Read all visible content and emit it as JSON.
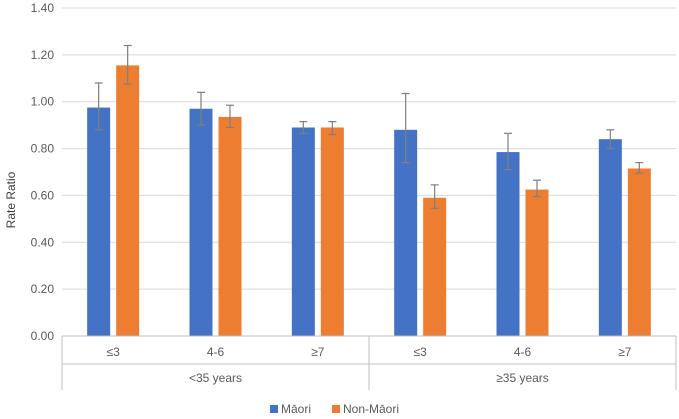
{
  "chart_data": {
    "type": "bar",
    "title": "",
    "ylabel": "Rate Ratio",
    "xlabel": "",
    "ylim": [
      0,
      1.4
    ],
    "yticks": [
      "0.00",
      "0.20",
      "0.40",
      "0.60",
      "0.80",
      "1.00",
      "1.20",
      "1.40"
    ],
    "grid": true,
    "legend_position": "bottom",
    "groups": [
      {
        "label": "<35 years",
        "categories": [
          "≤3",
          "4-6",
          "≥7"
        ]
      },
      {
        "label": "≥35 years",
        "categories": [
          "≤3",
          "4-6",
          "≥7"
        ]
      }
    ],
    "series": [
      {
        "name": "Māori",
        "color": "#4472C4",
        "values": [
          0.975,
          0.97,
          0.89,
          0.88,
          0.785,
          0.84
        ],
        "error_low": [
          0.88,
          0.9,
          0.865,
          0.74,
          0.71,
          0.8
        ],
        "error_high": [
          1.08,
          1.04,
          0.915,
          1.035,
          0.865,
          0.88
        ]
      },
      {
        "name": "Non-Māori",
        "color": "#ED7D31",
        "values": [
          1.155,
          0.935,
          0.89,
          0.59,
          0.625,
          0.715
        ],
        "error_low": [
          1.075,
          0.89,
          0.86,
          0.545,
          0.595,
          0.695
        ],
        "error_high": [
          1.24,
          0.985,
          0.915,
          0.645,
          0.665,
          0.74
        ]
      }
    ]
  }
}
